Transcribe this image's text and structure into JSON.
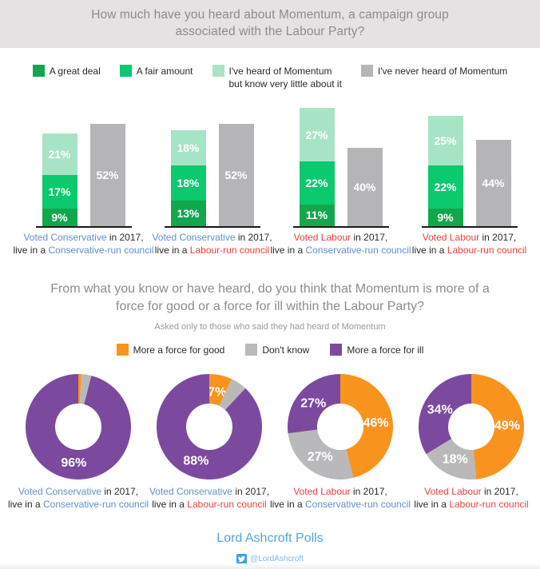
{
  "colors": {
    "header_bg": "#e5e2e4",
    "title_text": "#8c8c8c",
    "legend_text": "#2b2a2b",
    "label_dark": "#2b2a2b",
    "con_blue": "#6190ca",
    "lab_red": "#ed4040",
    "great_deal_green": "#12a74d",
    "fair_amount_green": "#0bc96d",
    "heard_little_green": "#a7e4c5",
    "never_heard_gray": "#b5b5b8",
    "good_orange": "#f8941d",
    "dont_know_gray": "#b9b9bb",
    "ill_purple": "#7b4a9e",
    "footer_link": "#56a3dc"
  },
  "chart_data": [
    {
      "type": "bar",
      "variant": "stacked-bar-with-comparison-bar",
      "unit": "%",
      "title": "How much have you heard about Momentum, a campaign group\nassociated with the Labour Party?",
      "ylim": [
        0,
        60
      ],
      "grid": false,
      "legend_position": "top",
      "legend": [
        {
          "label": "A great deal",
          "color": "#12a74d"
        },
        {
          "label": "A fair amount",
          "color": "#0bc96d"
        },
        {
          "label": "I've heard of Momentum\nbut know very little about it",
          "color": "#a7e4c5"
        },
        {
          "label": "I've never heard of Momentum",
          "color": "#b5b5b8"
        }
      ],
      "groups": [
        {
          "label_line1": [
            [
              "Voted Conservative",
              "blue"
            ],
            [
              " in 2017,",
              "dark"
            ]
          ],
          "label_line2": [
            [
              "live in a ",
              "dark"
            ],
            [
              "Conservative-run council",
              "blue"
            ]
          ],
          "segments": [
            {
              "name": "A great deal",
              "value": 9
            },
            {
              "name": "A fair amount",
              "value": 17
            },
            {
              "name": "I've heard of Momentum but know very little about it",
              "value": 21
            }
          ],
          "never_heard": 52
        },
        {
          "label_line1": [
            [
              "Voted Conservative",
              "blue"
            ],
            [
              " in 2017,",
              "dark"
            ]
          ],
          "label_line2": [
            [
              "live in a ",
              "dark"
            ],
            [
              "Labour-run council",
              "red"
            ]
          ],
          "segments": [
            {
              "name": "A great deal",
              "value": 13
            },
            {
              "name": "A fair amount",
              "value": 18
            },
            {
              "name": "I've heard of Momentum but know very little about it",
              "value": 18
            }
          ],
          "never_heard": 52
        },
        {
          "label_line1": [
            [
              "Voted Labour",
              "red"
            ],
            [
              " in 2017,",
              "dark"
            ]
          ],
          "label_line2": [
            [
              "live in a ",
              "dark"
            ],
            [
              "Conservative-run council",
              "blue"
            ]
          ],
          "segments": [
            {
              "name": "A great deal",
              "value": 11
            },
            {
              "name": "A fair amount",
              "value": 22
            },
            {
              "name": "I've heard of Momentum but know very little about it",
              "value": 27
            }
          ],
          "never_heard": 40
        },
        {
          "label_line1": [
            [
              "Voted Labour",
              "red"
            ],
            [
              " in 2017,",
              "dark"
            ]
          ],
          "label_line2": [
            [
              "live in a ",
              "dark"
            ],
            [
              "Labour-run council",
              "red"
            ]
          ],
          "segments": [
            {
              "name": "A great deal",
              "value": 9
            },
            {
              "name": "A fair amount",
              "value": 22
            },
            {
              "name": "I've heard of Momentum but know very little about it",
              "value": 25
            }
          ],
          "never_heard": 44
        }
      ]
    },
    {
      "type": "pie",
      "variant": "donut",
      "unit": "%",
      "title": "From what you know or have heard, do you think that Momentum is more of a\nforce for good or a force for ill within the Labour Party?",
      "subtitle": "Asked only to those who said they had heard of Momentum",
      "legend_position": "top",
      "legend": [
        {
          "label": "More a force for good",
          "color": "#f8941d"
        },
        {
          "label": "Don't know",
          "color": "#b9b9bb"
        },
        {
          "label": "More a force for ill",
          "color": "#7b4a9e"
        }
      ],
      "groups": [
        {
          "label_line1": [
            [
              "Voted Conservative",
              "blue"
            ],
            [
              " in 2017,",
              "dark"
            ]
          ],
          "label_line2": [
            [
              "live in a ",
              "dark"
            ],
            [
              "Conservative-run council",
              "blue"
            ]
          ],
          "slices": [
            {
              "name": "More a force for good",
              "value": 1,
              "labeled": false
            },
            {
              "name": "Don't know",
              "value": 3,
              "labeled": false
            },
            {
              "name": "More a force for ill",
              "value": 96,
              "labeled": true
            }
          ]
        },
        {
          "label_line1": [
            [
              "Voted Conservative",
              "blue"
            ],
            [
              " in 2017,",
              "dark"
            ]
          ],
          "label_line2": [
            [
              "live in a ",
              "dark"
            ],
            [
              "Labour-run council",
              "red"
            ]
          ],
          "slices": [
            {
              "name": "More a force for good",
              "value": 7,
              "labeled": true
            },
            {
              "name": "Don't know",
              "value": 5,
              "labeled": false
            },
            {
              "name": "More a force for ill",
              "value": 88,
              "labeled": true
            }
          ]
        },
        {
          "label_line1": [
            [
              "Voted Labour",
              "red"
            ],
            [
              " in 2017,",
              "dark"
            ]
          ],
          "label_line2": [
            [
              "live in a ",
              "dark"
            ],
            [
              "Conservative-run council",
              "blue"
            ]
          ],
          "slices": [
            {
              "name": "More a force for good",
              "value": 46,
              "labeled": true
            },
            {
              "name": "Don't know",
              "value": 27,
              "labeled": true
            },
            {
              "name": "More a force for ill",
              "value": 27,
              "labeled": true
            }
          ]
        },
        {
          "label_line1": [
            [
              "Voted Labour",
              "red"
            ],
            [
              " in 2017,",
              "dark"
            ]
          ],
          "label_line2": [
            [
              "live in a ",
              "dark"
            ],
            [
              "Labour-run council",
              "red"
            ]
          ],
          "slices": [
            {
              "name": "More a force for good",
              "value": 49,
              "labeled": true
            },
            {
              "name": "Don't know",
              "value": 18,
              "labeled": true
            },
            {
              "name": "More a force for ill",
              "value": 34,
              "labeled": true
            }
          ]
        }
      ]
    }
  ],
  "footer": {
    "brand": "Lord Ashcroft Polls",
    "twitter_handle": "@LordAshcroft"
  }
}
